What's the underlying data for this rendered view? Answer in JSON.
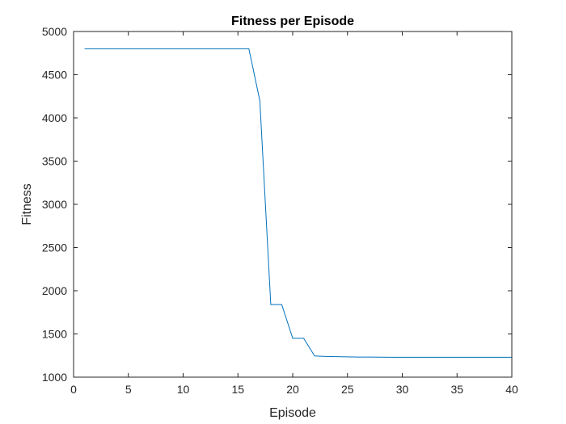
{
  "chart_data": {
    "type": "line",
    "title": "Fitness per Episode",
    "xlabel": "Episode",
    "ylabel": "Fitness",
    "xlim": [
      0,
      40
    ],
    "ylim": [
      1000,
      5000
    ],
    "xticks": [
      0,
      5,
      10,
      15,
      20,
      25,
      30,
      35,
      40
    ],
    "yticks": [
      1000,
      1500,
      2000,
      2500,
      3000,
      3500,
      4000,
      4500,
      5000
    ],
    "grid": false,
    "series": [
      {
        "color": "#0072BD",
        "x": [
          1,
          2,
          3,
          4,
          5,
          6,
          7,
          8,
          9,
          10,
          11,
          12,
          13,
          14,
          15,
          16,
          17,
          18,
          19,
          20,
          21,
          22,
          23,
          24,
          25,
          26,
          27,
          28,
          29,
          30,
          31,
          32,
          33,
          34,
          35,
          36,
          37,
          38,
          39,
          40
        ],
        "values": [
          4800,
          4800,
          4800,
          4800,
          4800,
          4800,
          4800,
          4800,
          4800,
          4800,
          4800,
          4800,
          4800,
          4800,
          4800,
          4800,
          4200,
          1840,
          1840,
          1450,
          1450,
          1245,
          1240,
          1237,
          1235,
          1233,
          1232,
          1231,
          1230,
          1230,
          1230,
          1230,
          1230,
          1230,
          1230,
          1230,
          1230,
          1230,
          1230,
          1230
        ]
      }
    ]
  }
}
